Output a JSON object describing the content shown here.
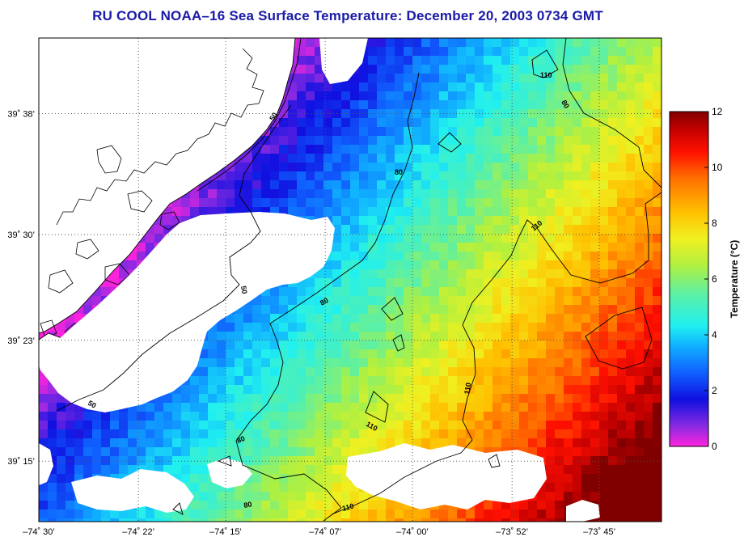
{
  "title": "RU COOL  NOAA–16  Sea Surface Temperature:  December 20, 2003 0734 GMT",
  "map": {
    "lon_range": [
      -74.5,
      -73.6667
    ],
    "lat_range": [
      39.1833,
      39.7167
    ],
    "x_ticks": [
      {
        "value": -74.5,
        "label": "–74˚ 30’"
      },
      {
        "value": -74.3667,
        "label": "–74˚ 22’"
      },
      {
        "value": -74.25,
        "label": "–74˚ 15’"
      },
      {
        "value": -74.1167,
        "label": "–74˚ 07’"
      },
      {
        "value": -74.0,
        "label": "–74˚ 00’"
      },
      {
        "value": -73.8667,
        "label": "–73˚ 52’"
      },
      {
        "value": -73.75,
        "label": "–73˚ 45’"
      }
    ],
    "y_ticks": [
      {
        "value": 39.6333,
        "label": "39˚ 38’"
      },
      {
        "value": 39.5,
        "label": "39˚ 30’"
      },
      {
        "value": 39.3833,
        "label": "39˚ 23’"
      },
      {
        "value": 39.25,
        "label": "39˚ 15’"
      }
    ],
    "grid": true,
    "contour_labels": [
      "50",
      "80",
      "110"
    ]
  },
  "colorbar": {
    "title": "Temperature (°C)",
    "min": 0,
    "max": 12,
    "ticks": [
      "0",
      "2",
      "4",
      "6",
      "8",
      "10",
      "12"
    ]
  }
}
